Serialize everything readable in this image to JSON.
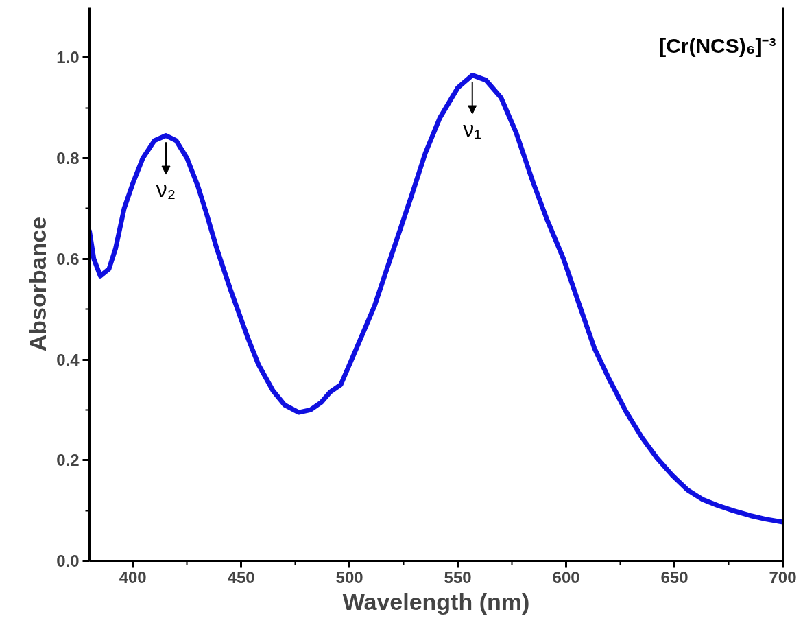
{
  "chart_data": {
    "type": "line",
    "xlabel": "Wavelength (nm)",
    "ylabel": "Absorbance",
    "xlim": [
      380,
      700
    ],
    "xticks": [
      400,
      450,
      500,
      550,
      600,
      650,
      700
    ],
    "ylim": [
      0,
      1.1
    ],
    "yticks": [
      {
        "value": 0,
        "label": "0.0"
      },
      {
        "value": 0.2,
        "label": "0.2"
      },
      {
        "value": 0.4,
        "label": "0.4"
      },
      {
        "value": 0.6,
        "label": "0.6"
      },
      {
        "value": 0.8,
        "label": "0.8"
      },
      {
        "value": 1.0,
        "label": "1.0"
      }
    ],
    "grid": false,
    "marker": "none",
    "line_style": "solid",
    "series": [
      {
        "color": "#1010e0",
        "x": [
          380,
          382,
          385,
          389,
          392,
          396,
          400,
          404.6,
          410,
          415.3,
          420,
          425,
          430,
          434,
          438.8,
          445,
          453,
          458,
          464.7,
          470,
          476.6,
          482,
          487,
          491,
          496,
          500,
          505,
          511.6,
          520,
          528.6,
          535,
          541.7,
          550,
          556.7,
          563,
          570,
          577,
          584.5,
          591,
          598.8,
          606,
          613,
          620,
          627.6,
          635,
          642,
          649,
          656,
          663,
          670,
          677,
          685,
          692,
          700
        ],
        "values": [
          0.655,
          0.6,
          0.566,
          0.58,
          0.62,
          0.7,
          0.75,
          0.8,
          0.835,
          0.845,
          0.835,
          0.8,
          0.745,
          0.69,
          0.62,
          0.54,
          0.444,
          0.39,
          0.338,
          0.31,
          0.295,
          0.3,
          0.315,
          0.335,
          0.35,
          0.39,
          0.44,
          0.507,
          0.615,
          0.725,
          0.81,
          0.88,
          0.94,
          0.965,
          0.955,
          0.92,
          0.85,
          0.755,
          0.68,
          0.6,
          0.51,
          0.423,
          0.36,
          0.297,
          0.245,
          0.204,
          0.17,
          0.141,
          0.122,
          0.11,
          0.1,
          0.09,
          0.083,
          0.077
        ]
      }
    ],
    "annotations": [
      {
        "text": "ν₂",
        "x": 415.3,
        "y": 0.845
      },
      {
        "text": "ν₁",
        "x": 556.7,
        "y": 0.965
      },
      "[Cr(NCS)₆]⁻³"
    ]
  }
}
